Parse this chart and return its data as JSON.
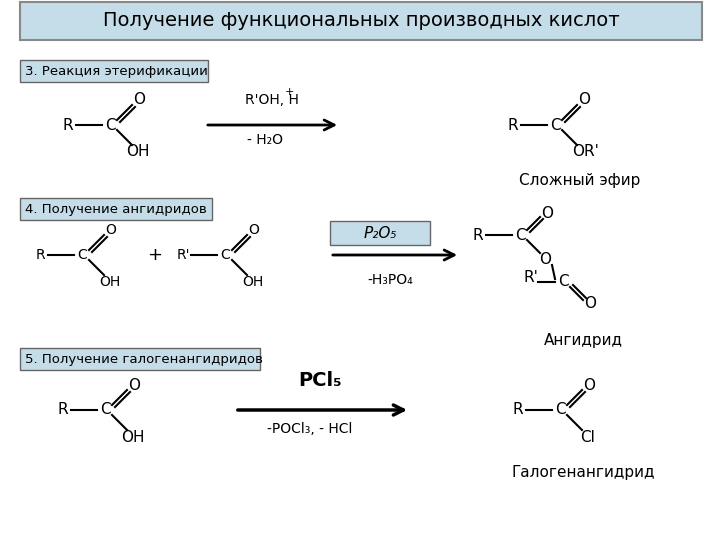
{
  "title": "Получение функциональных производных кислот",
  "title_bg": "#c5dde8",
  "title_border": "#888888",
  "bg_color": "#ffffff",
  "label_bg": "#c5dde8",
  "reaction1_label": "3. Реакция этерификации",
  "reaction2_label": "4. Получение ангидридов",
  "reaction3_label": "5. Получение галогенангидридов",
  "product1_name": "Сложный эфир",
  "product2_name": "Ангидрид",
  "product3_name": "Галогенангидрид",
  "arrow1_above": "R'OH, H",
  "arrow1_above_sup": "+",
  "arrow1_below": "- H₂O",
  "arrow2_above": "P₂O₅",
  "arrow2_below": "-H₃PO₄",
  "arrow3_above": "PCl₅",
  "arrow3_below": "-POCl₃, - HCl"
}
